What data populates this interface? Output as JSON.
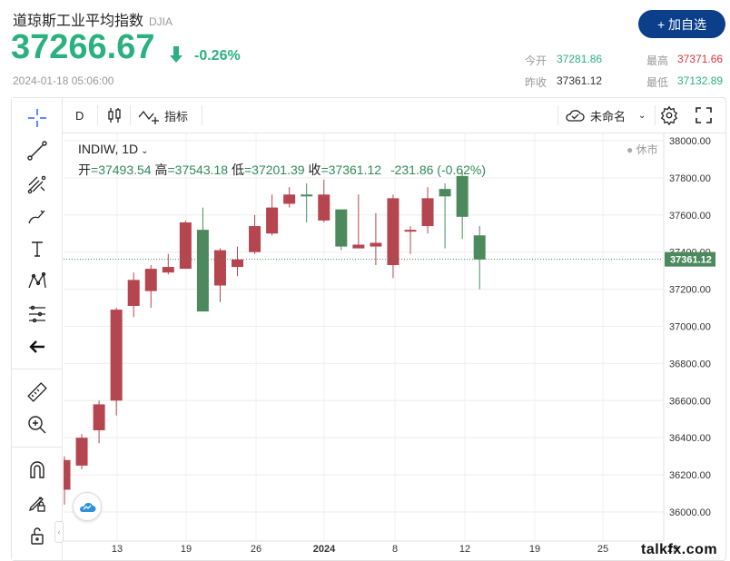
{
  "header": {
    "title": "道琼斯工业平均指数",
    "code": "DJIA",
    "price": "37266.67",
    "change_pct": "-0.26%",
    "datetime": "2024-01-18 05:06:00",
    "add_button": "+ 加自选"
  },
  "quote": {
    "open_label": "今开",
    "open": "37281.86",
    "high_label": "最高",
    "high": "37371.66",
    "prev_label": "昨收",
    "prev": "37361.12",
    "low_label": "最低",
    "low": "37132.89"
  },
  "toolbar": {
    "interval": "D",
    "indicators_label": "指标",
    "layout_name": "未命名"
  },
  "legend": {
    "symbol": "INDIW, 1D",
    "open_label": "开",
    "open": "37493.54",
    "high_label": "高",
    "high": "37543.18",
    "low_label": "低",
    "low": "37201.39",
    "close_label": "收",
    "close": "37361.12",
    "change": "-231.86 (-0.62%)",
    "market_status": "休市"
  },
  "chart_data": {
    "type": "candlestick",
    "y_ticks": [
      "38000.00",
      "37800.00",
      "37600.00",
      "37400.00",
      "37200.00",
      "37000.00",
      "36800.00",
      "36600.00",
      "36400.00",
      "36200.00",
      "36000.00"
    ],
    "ylim": [
      35980,
      38020
    ],
    "x_ticks": [
      "13",
      "19",
      "26",
      "2024",
      "8",
      "12",
      "19",
      "25",
      "29"
    ],
    "last_price_label": "37361.12",
    "last_price": 37361.12,
    "colors": {
      "up": "#b5454f",
      "down": "#4c8a5e"
    },
    "candles": [
      {
        "o": 36120,
        "h": 36300,
        "l": 36040,
        "c": 36280,
        "dir": "up"
      },
      {
        "o": 36250,
        "h": 36420,
        "l": 36230,
        "c": 36400,
        "dir": "up"
      },
      {
        "o": 36440,
        "h": 36600,
        "l": 36370,
        "c": 36580,
        "dir": "up"
      },
      {
        "o": 36600,
        "h": 37100,
        "l": 36520,
        "c": 37090,
        "dir": "up"
      },
      {
        "o": 37110,
        "h": 37290,
        "l": 37050,
        "c": 37250,
        "dir": "up"
      },
      {
        "o": 37190,
        "h": 37330,
        "l": 37100,
        "c": 37310,
        "dir": "up"
      },
      {
        "o": 37290,
        "h": 37390,
        "l": 37280,
        "c": 37320,
        "dir": "up"
      },
      {
        "o": 37310,
        "h": 37570,
        "l": 37310,
        "c": 37560,
        "dir": "up"
      },
      {
        "o": 37520,
        "h": 37640,
        "l": 37080,
        "c": 37080,
        "dir": "down"
      },
      {
        "o": 37220,
        "h": 37420,
        "l": 37130,
        "c": 37410,
        "dir": "up"
      },
      {
        "o": 37320,
        "h": 37430,
        "l": 37270,
        "c": 37360,
        "dir": "up"
      },
      {
        "o": 37400,
        "h": 37600,
        "l": 37390,
        "c": 37540,
        "dir": "up"
      },
      {
        "o": 37500,
        "h": 37710,
        "l": 37490,
        "c": 37640,
        "dir": "up"
      },
      {
        "o": 37660,
        "h": 37750,
        "l": 37640,
        "c": 37710,
        "dir": "up"
      },
      {
        "o": 37710,
        "h": 37770,
        "l": 37560,
        "c": 37700,
        "dir": "down"
      },
      {
        "o": 37570,
        "h": 37790,
        "l": 37560,
        "c": 37710,
        "dir": "up"
      },
      {
        "o": 37630,
        "h": 37630,
        "l": 37410,
        "c": 37430,
        "dir": "down"
      },
      {
        "o": 37420,
        "h": 37710,
        "l": 37420,
        "c": 37440,
        "dir": "up"
      },
      {
        "o": 37430,
        "h": 37610,
        "l": 37330,
        "c": 37450,
        "dir": "up"
      },
      {
        "o": 37330,
        "h": 37710,
        "l": 37260,
        "c": 37690,
        "dir": "up"
      },
      {
        "o": 37510,
        "h": 37540,
        "l": 37390,
        "c": 37520,
        "dir": "up"
      },
      {
        "o": 37540,
        "h": 37750,
        "l": 37500,
        "c": 37690,
        "dir": "up"
      },
      {
        "o": 37700,
        "h": 37770,
        "l": 37420,
        "c": 37740,
        "dir": "down"
      },
      {
        "o": 37810,
        "h": 37840,
        "l": 37470,
        "c": 37590,
        "dir": "down"
      },
      {
        "o": 37490,
        "h": 37540,
        "l": 37200,
        "c": 37360,
        "dir": "down"
      }
    ]
  },
  "watermark": "talkfx.com"
}
